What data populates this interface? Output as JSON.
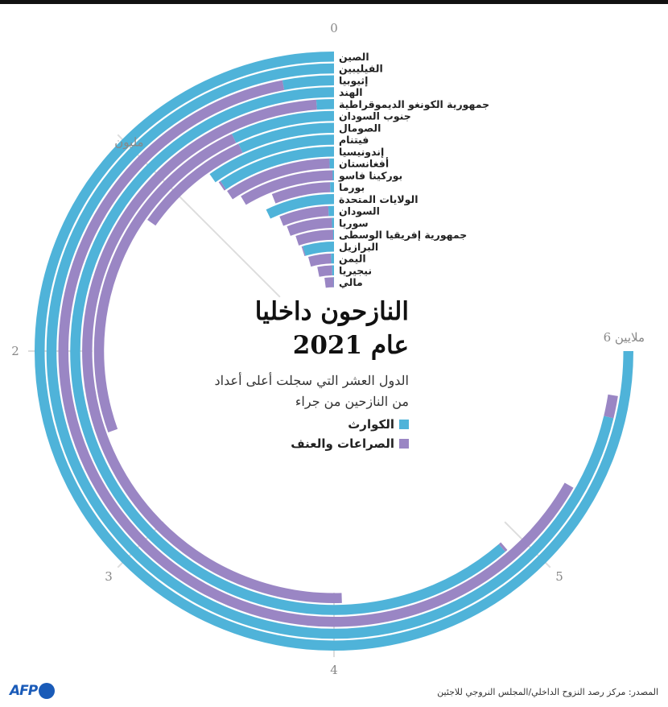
{
  "title_lines": [
    "النازحون داخليا",
    "عام 2021"
  ],
  "subtitle_lines": [
    "الدول العشر التي سجلت أعلى أعداد",
    "من النازحين من جراء"
  ],
  "legend": [
    {
      "label": "الكوارث",
      "color": "#4fb3d9"
    },
    {
      "label": "الصراعات والعنف",
      "color": "#9a86c4"
    }
  ],
  "source": "المصدر: مركز رصد النزوح الداخلي/المجلس النروجي للاجئين",
  "logo_text": "AFP",
  "chart_data": {
    "type": "radial-bar",
    "unit": "millions",
    "axis_max": 6,
    "ticks": [
      {
        "value": 0,
        "label": "0"
      },
      {
        "value": 1,
        "label": "مليون"
      },
      {
        "value": 2,
        "label": "2"
      },
      {
        "value": 3,
        "label": "3"
      },
      {
        "value": 4,
        "label": "4"
      },
      {
        "value": 5,
        "label": "5"
      },
      {
        "value": 6,
        "label": "6 ملايين"
      }
    ],
    "series": [
      {
        "name": "الكوارث",
        "color": "#4fb3d9"
      },
      {
        "name": "الصراعات والعنف",
        "color": "#9a86c4"
      }
    ],
    "countries": [
      {
        "name": "الصين",
        "disasters": 6.0,
        "conflict": 0
      },
      {
        "name": "الفيليبين",
        "disasters": 5.7,
        "conflict": 0.1
      },
      {
        "name": "إثيوبيا",
        "disasters": 0.24,
        "conflict": 5.1
      },
      {
        "name": "الهند",
        "disasters": 4.9,
        "conflict": 0.005
      },
      {
        "name": "جمهورية الكونغو الديموقراطية",
        "disasters": 0.09,
        "conflict": 3.95
      },
      {
        "name": "جنوب السودان",
        "disasters": 0.56,
        "conflict": 1.88
      },
      {
        "name": "الصومال",
        "disasters": 0.55,
        "conflict": 0.67
      },
      {
        "name": "فيتنام",
        "disasters": 0.78,
        "conflict": 0
      },
      {
        "name": "إندونيسيا",
        "disasters": 0.75,
        "conflict": 0.003
      },
      {
        "name": "أفغانستان",
        "disasters": 0.03,
        "conflict": 0.72
      },
      {
        "name": "بوركينا فاسو",
        "disasters": 0.01,
        "conflict": 0.68
      },
      {
        "name": "بورما",
        "disasters": 0.03,
        "conflict": 0.45
      },
      {
        "name": "الولايات المتحدة",
        "disasters": 0.57,
        "conflict": 0
      },
      {
        "name": "السودان",
        "disasters": 0.05,
        "conflict": 0.44
      },
      {
        "name": "سوريا",
        "disasters": 0.02,
        "conflict": 0.44
      },
      {
        "name": "جمهورية إفريقيا الوسطى",
        "disasters": 0.01,
        "conflict": 0.4
      },
      {
        "name": "البرازيل",
        "disasters": 0.37,
        "conflict": 0.001
      },
      {
        "name": "اليمن",
        "disasters": 0.04,
        "conflict": 0.3
      },
      {
        "name": "نيجيريا",
        "disasters": 0.03,
        "conflict": 0.22
      },
      {
        "name": "مالي",
        "disasters": 0.005,
        "conflict": 0.16
      }
    ]
  }
}
